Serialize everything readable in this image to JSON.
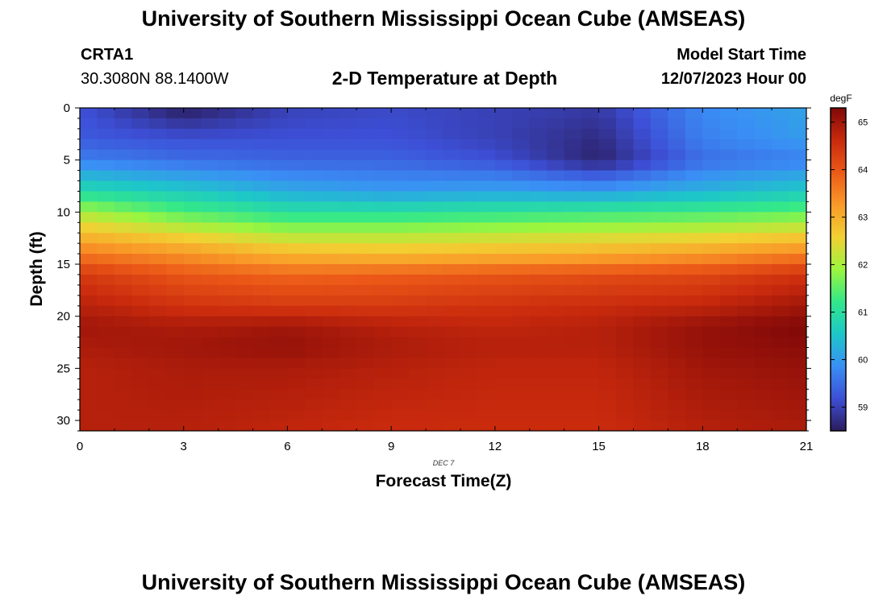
{
  "header": {
    "main_title": "University of Southern Mississippi Ocean Cube (AMSEAS)",
    "station_id": "CRTA1",
    "station_coords": "30.3080N  88.1400W",
    "plot_title": "2-D Temperature at Depth",
    "model_start_label": "Model Start Time",
    "model_start_value": "12/07/2023 Hour 00"
  },
  "footer": {
    "repeat_title": "University of Southern Mississippi Ocean Cube (AMSEAS)"
  },
  "colorbar": {
    "unit": "degF",
    "min": 58.5,
    "max": 65.3,
    "ticks": [
      59,
      60,
      61,
      62,
      63,
      64,
      65
    ],
    "colors": [
      "#2b1c5c",
      "#3d4fd6",
      "#3a8ff5",
      "#1dc7c8",
      "#33e88a",
      "#9cf53e",
      "#f2d033",
      "#f99a28",
      "#ec5a18",
      "#c92a0d",
      "#800808"
    ]
  },
  "chart_data": {
    "type": "heatmap",
    "title": "2-D Temperature at Depth",
    "xlabel": "Forecast Time(Z)",
    "ylabel": "Depth (ft)",
    "date_label": "DEC 7",
    "x_ticks": [
      0,
      3,
      6,
      9,
      12,
      15,
      18,
      21
    ],
    "y_ticks": [
      0,
      5,
      10,
      15,
      20,
      25,
      30
    ],
    "xlim": [
      0,
      21
    ],
    "ylim": [
      31,
      0
    ],
    "x": [
      0,
      3,
      6,
      9,
      12,
      15,
      18,
      21
    ],
    "y": [
      0,
      3,
      5,
      8,
      10,
      12,
      14,
      16,
      19,
      21,
      23,
      25,
      31
    ],
    "z": [
      [
        59.2,
        58.5,
        59.0,
        59.1,
        59.0,
        58.9,
        59.8,
        60.1
      ],
      [
        59.3,
        59.2,
        59.2,
        59.2,
        59.0,
        58.7,
        59.7,
        60.0
      ],
      [
        59.7,
        59.5,
        59.4,
        59.4,
        59.2,
        58.6,
        59.5,
        59.7
      ],
      [
        60.9,
        60.6,
        60.2,
        60.0,
        60.1,
        60.0,
        60.3,
        60.6
      ],
      [
        62.0,
        61.4,
        61.0,
        61.0,
        61.1,
        61.2,
        61.3,
        61.5
      ],
      [
        62.8,
        62.4,
        62.0,
        62.0,
        62.1,
        62.2,
        62.3,
        62.5
      ],
      [
        63.6,
        63.3,
        62.9,
        62.8,
        62.9,
        63.0,
        63.2,
        63.5
      ],
      [
        64.4,
        64.0,
        63.8,
        63.9,
        64.0,
        64.1,
        64.2,
        64.5
      ],
      [
        64.8,
        64.5,
        64.4,
        64.4,
        64.5,
        64.6,
        64.7,
        65.0
      ],
      [
        65.0,
        64.9,
        65.0,
        64.8,
        64.7,
        64.8,
        65.1,
        65.3
      ],
      [
        64.9,
        65.0,
        65.1,
        64.9,
        64.8,
        64.8,
        65.1,
        65.2
      ],
      [
        64.8,
        64.9,
        64.9,
        64.8,
        64.7,
        64.7,
        65.0,
        65.1
      ],
      [
        64.8,
        64.8,
        64.7,
        64.6,
        64.6,
        64.6,
        64.8,
        64.9
      ]
    ]
  }
}
